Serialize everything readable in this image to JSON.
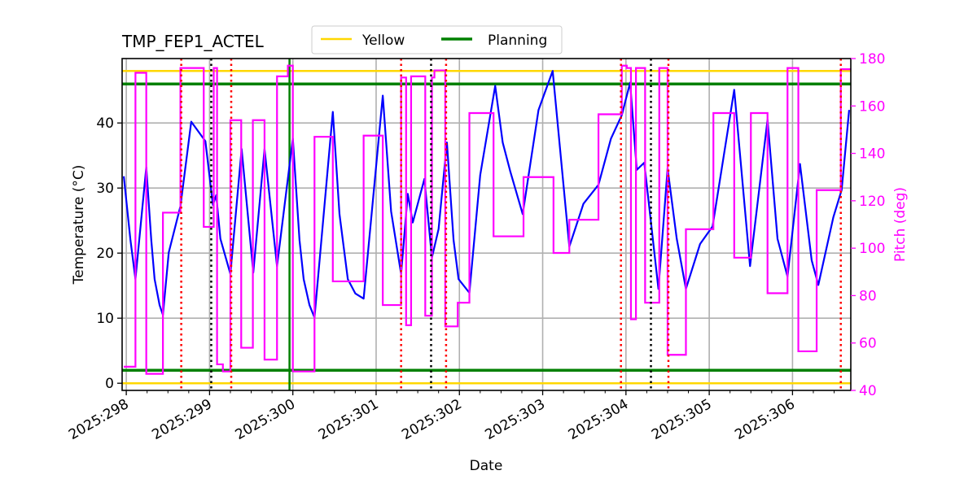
{
  "chart_data": {
    "type": "line",
    "title": "TMP_FEP1_ACTEL",
    "xlabel": "Date",
    "ylabel": "Temperature ($^\\circ$C)",
    "ylabel_display": "Temperature (°C)",
    "y2label": "Pitch (deg)",
    "xlim": [
      297.95,
      306.7
    ],
    "ylim": [
      -1.1,
      49.9
    ],
    "y2lim": [
      40,
      180
    ],
    "x_ticks": [
      298,
      299,
      300,
      301,
      302,
      303,
      304,
      305,
      306
    ],
    "x_tick_labels": [
      "2025:298",
      "2025:299",
      "2025:300",
      "2025:301",
      "2025:302",
      "2025:303",
      "2025:304",
      "2025:305",
      "2025:306"
    ],
    "y_ticks": [
      0,
      10,
      20,
      30,
      40
    ],
    "y2_ticks": [
      40,
      60,
      80,
      100,
      120,
      140,
      160,
      180
    ],
    "grid": true,
    "legend": {
      "placement": "top-center, above axes",
      "entries": [
        {
          "name": "Yellow",
          "color": "#ffd700"
        },
        {
          "name": "Planning",
          "color": "#008000"
        }
      ]
    },
    "colors": {
      "temperature": "#0000ff",
      "pitch": "#ff00ff",
      "yellow": "#ffd700",
      "planning": "#008000",
      "red_events": "#ff0000",
      "black_events": "#000000"
    },
    "limit_lines": {
      "yellow": [
        0,
        48
      ],
      "planning": [
        2,
        46
      ]
    },
    "planning_vertical_x": 299.96,
    "red_dotted_x": [
      298.66,
      299.26,
      301.3,
      301.84,
      303.94,
      304.51,
      306.58
    ],
    "black_dotted_x": [
      299.02,
      301.66,
      304.3
    ],
    "temperature": [
      [
        297.97,
        31.8
      ],
      [
        298.05,
        22
      ],
      [
        298.11,
        16
      ],
      [
        298.24,
        33.2
      ],
      [
        298.3,
        22
      ],
      [
        298.34,
        16
      ],
      [
        298.4,
        12
      ],
      [
        298.44,
        10.5
      ],
      [
        298.51,
        20.1
      ],
      [
        298.65,
        27.2
      ],
      [
        298.78,
        40.2
      ],
      [
        298.95,
        37.2
      ],
      [
        299.04,
        27.4
      ],
      [
        299.08,
        28.9
      ],
      [
        299.13,
        22.2
      ],
      [
        299.25,
        16.8
      ],
      [
        299.385,
        36.0
      ],
      [
        299.525,
        17.0
      ],
      [
        299.66,
        36.0
      ],
      [
        299.81,
        18.0
      ],
      [
        300.0,
        37.6
      ],
      [
        300.08,
        22
      ],
      [
        300.13,
        16.0
      ],
      [
        300.2,
        12
      ],
      [
        300.26,
        10.1
      ],
      [
        300.48,
        41.7
      ],
      [
        300.56,
        26
      ],
      [
        300.66,
        16.0
      ],
      [
        300.75,
        13.8
      ],
      [
        300.85,
        13.0
      ],
      [
        301.08,
        44.2
      ],
      [
        301.18,
        26.4
      ],
      [
        301.3,
        16.8
      ],
      [
        301.38,
        29.1
      ],
      [
        301.44,
        24.7
      ],
      [
        301.58,
        31.4
      ],
      [
        301.67,
        19.3
      ],
      [
        301.75,
        23.7
      ],
      [
        301.85,
        37.0
      ],
      [
        301.93,
        22
      ],
      [
        301.99,
        16.0
      ],
      [
        302.12,
        13.9
      ],
      [
        302.25,
        32
      ],
      [
        302.43,
        45.7
      ],
      [
        302.52,
        37
      ],
      [
        302.61,
        32.6
      ],
      [
        302.76,
        26.0
      ],
      [
        302.95,
        42
      ],
      [
        303.12,
        48.0
      ],
      [
        303.32,
        21.0
      ],
      [
        303.49,
        27.6
      ],
      [
        303.67,
        30.5
      ],
      [
        303.82,
        37.6
      ],
      [
        303.95,
        41.2
      ],
      [
        304.05,
        46.2
      ],
      [
        304.13,
        32.8
      ],
      [
        304.22,
        33.9
      ],
      [
        304.39,
        14.5
      ],
      [
        304.5,
        33.0
      ],
      [
        304.61,
        22.2
      ],
      [
        304.72,
        14.5
      ],
      [
        304.89,
        21.4
      ],
      [
        305.04,
        24.1
      ],
      [
        305.3,
        45.1
      ],
      [
        305.49,
        18.0
      ],
      [
        305.7,
        40.5
      ],
      [
        305.82,
        22.2
      ],
      [
        305.94,
        16.4
      ],
      [
        306.09,
        33.7
      ],
      [
        306.23,
        18.9
      ],
      [
        306.31,
        15.1
      ],
      [
        306.49,
        25.5
      ],
      [
        306.59,
        29.7
      ],
      [
        306.68,
        42.0
      ]
    ],
    "pitch_steps": [
      [
        297.97,
        50
      ],
      [
        298.11,
        174
      ],
      [
        298.24,
        47
      ],
      [
        298.44,
        115
      ],
      [
        298.65,
        176
      ],
      [
        298.93,
        109
      ],
      [
        299.05,
        176
      ],
      [
        299.09,
        51
      ],
      [
        299.16,
        48
      ],
      [
        299.25,
        154
      ],
      [
        299.38,
        58
      ],
      [
        299.52,
        154
      ],
      [
        299.66,
        53
      ],
      [
        299.81,
        172.5
      ],
      [
        299.94,
        177
      ],
      [
        300.0,
        48
      ],
      [
        300.26,
        147
      ],
      [
        300.48,
        86
      ],
      [
        300.85,
        147.5
      ],
      [
        301.08,
        76
      ],
      [
        301.3,
        172
      ],
      [
        301.36,
        67.5
      ],
      [
        301.42,
        172.5
      ],
      [
        301.59,
        71.5
      ],
      [
        301.67,
        172
      ],
      [
        301.7,
        175
      ],
      [
        301.83,
        67
      ],
      [
        301.98,
        77
      ],
      [
        302.12,
        157
      ],
      [
        302.41,
        105
      ],
      [
        302.77,
        130
      ],
      [
        303.13,
        98
      ],
      [
        303.32,
        112
      ],
      [
        303.67,
        156.5
      ],
      [
        303.95,
        177
      ],
      [
        304.01,
        176
      ],
      [
        304.06,
        70
      ],
      [
        304.12,
        176
      ],
      [
        304.23,
        77
      ],
      [
        304.4,
        176
      ],
      [
        304.5,
        55
      ],
      [
        304.72,
        108
      ],
      [
        305.05,
        157
      ],
      [
        305.3,
        96
      ],
      [
        305.5,
        157
      ],
      [
        305.7,
        81
      ],
      [
        305.94,
        176
      ],
      [
        306.07,
        56.5
      ],
      [
        306.29,
        124.5
      ],
      [
        306.58,
        175.5
      ]
    ],
    "pitch_end_x": 306.7
  }
}
